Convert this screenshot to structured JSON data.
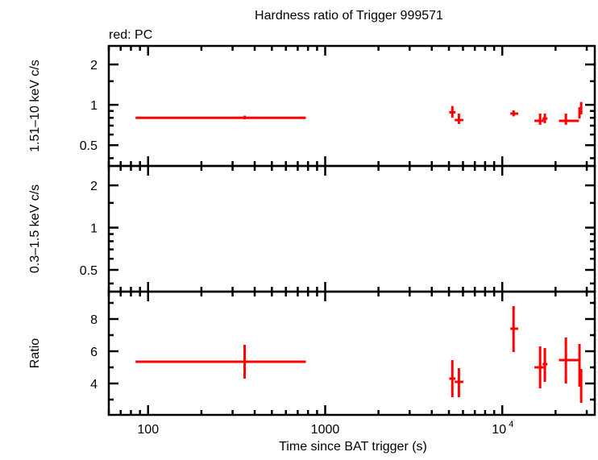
{
  "chart_data": {
    "type": "scatter",
    "title": "Hardness ratio of Trigger 999571",
    "legend_note": "red: PC",
    "xlabel": "Time since BAT trigger (s)",
    "x_scale": "log",
    "xlim": [
      60,
      33300
    ],
    "x_ticks": [
      {
        "value": 100,
        "label": "100"
      },
      {
        "value": 1000,
        "label": "1000"
      },
      {
        "value": 10000,
        "label": "10⁴"
      }
    ],
    "series_color": "#ff0000",
    "panels": [
      {
        "ylabel": "1.51–10 keV c/s",
        "y_scale": "log",
        "ylim": [
          0.35,
          2.75
        ],
        "y_ticks": [
          {
            "value": 0.5,
            "label": "0.5"
          },
          {
            "value": 1,
            "label": "1"
          },
          {
            "value": 2,
            "label": "2"
          }
        ],
        "points": [
          {
            "x": 351,
            "xlo": 85,
            "xhi": 778,
            "y": 0.8,
            "ylo": 0.78,
            "yhi": 0.83
          },
          {
            "x": 5224,
            "xlo": 5020,
            "xhi": 5440,
            "y": 0.88,
            "ylo": 0.8,
            "yhi": 0.98
          },
          {
            "x": 5690,
            "xlo": 5390,
            "xhi": 6030,
            "y": 0.77,
            "ylo": 0.72,
            "yhi": 0.86
          },
          {
            "x": 11580,
            "xlo": 11100,
            "xhi": 12300,
            "y": 0.86,
            "ylo": 0.82,
            "yhi": 0.91
          },
          {
            "x": 16360,
            "xlo": 15200,
            "xhi": 17100,
            "y": 0.76,
            "ylo": 0.71,
            "yhi": 0.86
          },
          {
            "x": 17400,
            "xlo": 16900,
            "xhi": 18000,
            "y": 0.79,
            "ylo": 0.73,
            "yhi": 0.86
          },
          {
            "x": 22870,
            "xlo": 20900,
            "xhi": 27100,
            "y": 0.76,
            "ylo": 0.71,
            "yhi": 0.86
          },
          {
            "x": 27300,
            "xlo": 26900,
            "xhi": 27700,
            "y": 0.86,
            "ylo": 0.79,
            "yhi": 0.96
          },
          {
            "x": 27900,
            "xlo": 27700,
            "xhi": 28100,
            "y": 0.96,
            "ylo": 0.85,
            "yhi": 1.05
          }
        ]
      },
      {
        "ylabel": "0.3–1.5 keV c/s",
        "y_scale": "log",
        "ylim": [
          0.35,
          2.75
        ],
        "y_ticks": [
          {
            "value": 0.5,
            "label": "0.5"
          },
          {
            "value": 1,
            "label": "1"
          },
          {
            "value": 2,
            "label": "2"
          }
        ],
        "points": []
      },
      {
        "ylabel": "Ratio",
        "y_scale": "linear",
        "ylim": [
          2.05,
          9.7
        ],
        "y_ticks": [
          {
            "value": 4,
            "label": "4"
          },
          {
            "value": 6,
            "label": "6"
          },
          {
            "value": 8,
            "label": "8"
          }
        ],
        "points": [
          {
            "x": 351,
            "xlo": 85,
            "xhi": 778,
            "y": 5.35,
            "ylo": 4.3,
            "yhi": 6.4
          },
          {
            "x": 5224,
            "xlo": 5020,
            "xhi": 5440,
            "y": 4.3,
            "ylo": 3.15,
            "yhi": 5.45
          },
          {
            "x": 5690,
            "xlo": 5390,
            "xhi": 6030,
            "y": 4.1,
            "ylo": 3.15,
            "yhi": 4.95
          },
          {
            "x": 11580,
            "xlo": 11100,
            "xhi": 12300,
            "y": 7.4,
            "ylo": 5.95,
            "yhi": 8.8
          },
          {
            "x": 16360,
            "xlo": 15200,
            "xhi": 17100,
            "y": 5.0,
            "ylo": 3.7,
            "yhi": 6.3
          },
          {
            "x": 17400,
            "xlo": 16900,
            "xhi": 18000,
            "y": 5.2,
            "ylo": 4.1,
            "yhi": 6.2
          },
          {
            "x": 22870,
            "xlo": 20900,
            "xhi": 27100,
            "y": 5.45,
            "ylo": 4.0,
            "yhi": 6.85
          },
          {
            "x": 27300,
            "xlo": 26900,
            "xhi": 27700,
            "y": 5.1,
            "ylo": 3.8,
            "yhi": 6.45
          },
          {
            "x": 27900,
            "xlo": 27700,
            "xhi": 28100,
            "y": 3.8,
            "ylo": 2.8,
            "yhi": 4.9
          }
        ]
      }
    ]
  }
}
